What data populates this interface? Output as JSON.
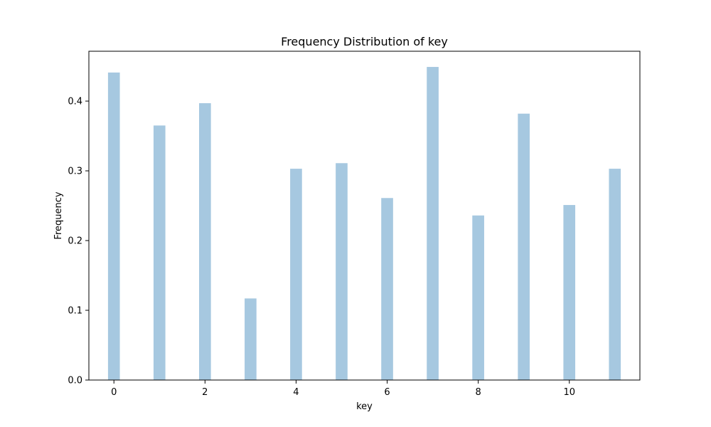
{
  "chart_data": {
    "type": "bar",
    "title": "Frequency Distribution of key",
    "xlabel": "key",
    "ylabel": "Frequency",
    "x": [
      0,
      1,
      2,
      3,
      4,
      5,
      6,
      7,
      8,
      9,
      10,
      11
    ],
    "values": [
      0.441,
      0.365,
      0.397,
      0.117,
      0.303,
      0.311,
      0.261,
      0.449,
      0.236,
      0.382,
      0.251,
      0.303
    ],
    "xlim": [
      -0.55,
      11.55
    ],
    "ylim": [
      0,
      0.4715
    ],
    "x_ticks": [
      0,
      2,
      4,
      6,
      8,
      10
    ],
    "x_tick_labels": [
      "0",
      "2",
      "4",
      "6",
      "8",
      "10"
    ],
    "y_ticks": [
      0.0,
      0.1,
      0.2,
      0.3,
      0.4
    ],
    "y_tick_labels": [
      "0.0",
      "0.1",
      "0.2",
      "0.3",
      "0.4"
    ],
    "bar_width": 0.26,
    "bar_color": "#a6c8e0",
    "grid": false,
    "legend": "none"
  }
}
